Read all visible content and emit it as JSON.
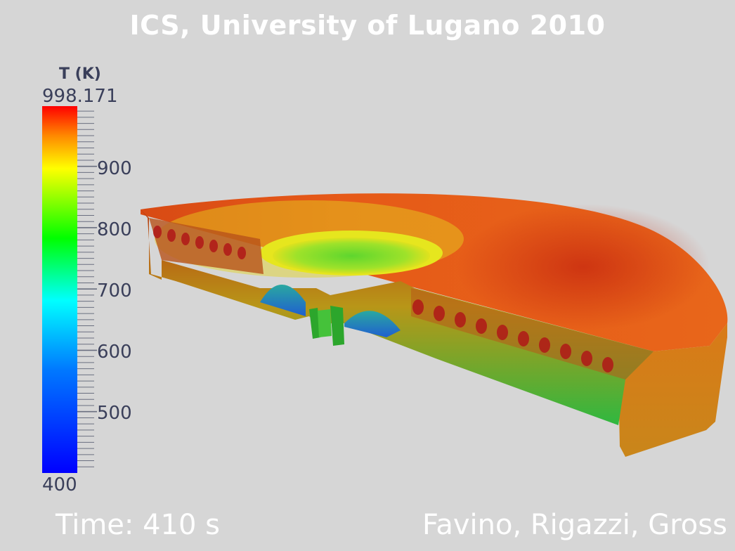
{
  "title": "ICS, University of Lugano 2010",
  "colorbar": {
    "title": "T (K)",
    "max_label": "998.171",
    "min_label": "400",
    "labels": [
      "900",
      "800",
      "700",
      "600",
      "500"
    ],
    "range": [
      400,
      998.171
    ],
    "label_values": [
      900,
      800,
      700,
      600,
      500
    ],
    "colors": [
      "#0000ff",
      "#0080ff",
      "#00ffff",
      "#00ff00",
      "#ffff00",
      "#ff8000",
      "#ff0000"
    ]
  },
  "footer": {
    "time": "Time: 410 s",
    "authors": "Favino, Rigazzi, Gross"
  }
}
